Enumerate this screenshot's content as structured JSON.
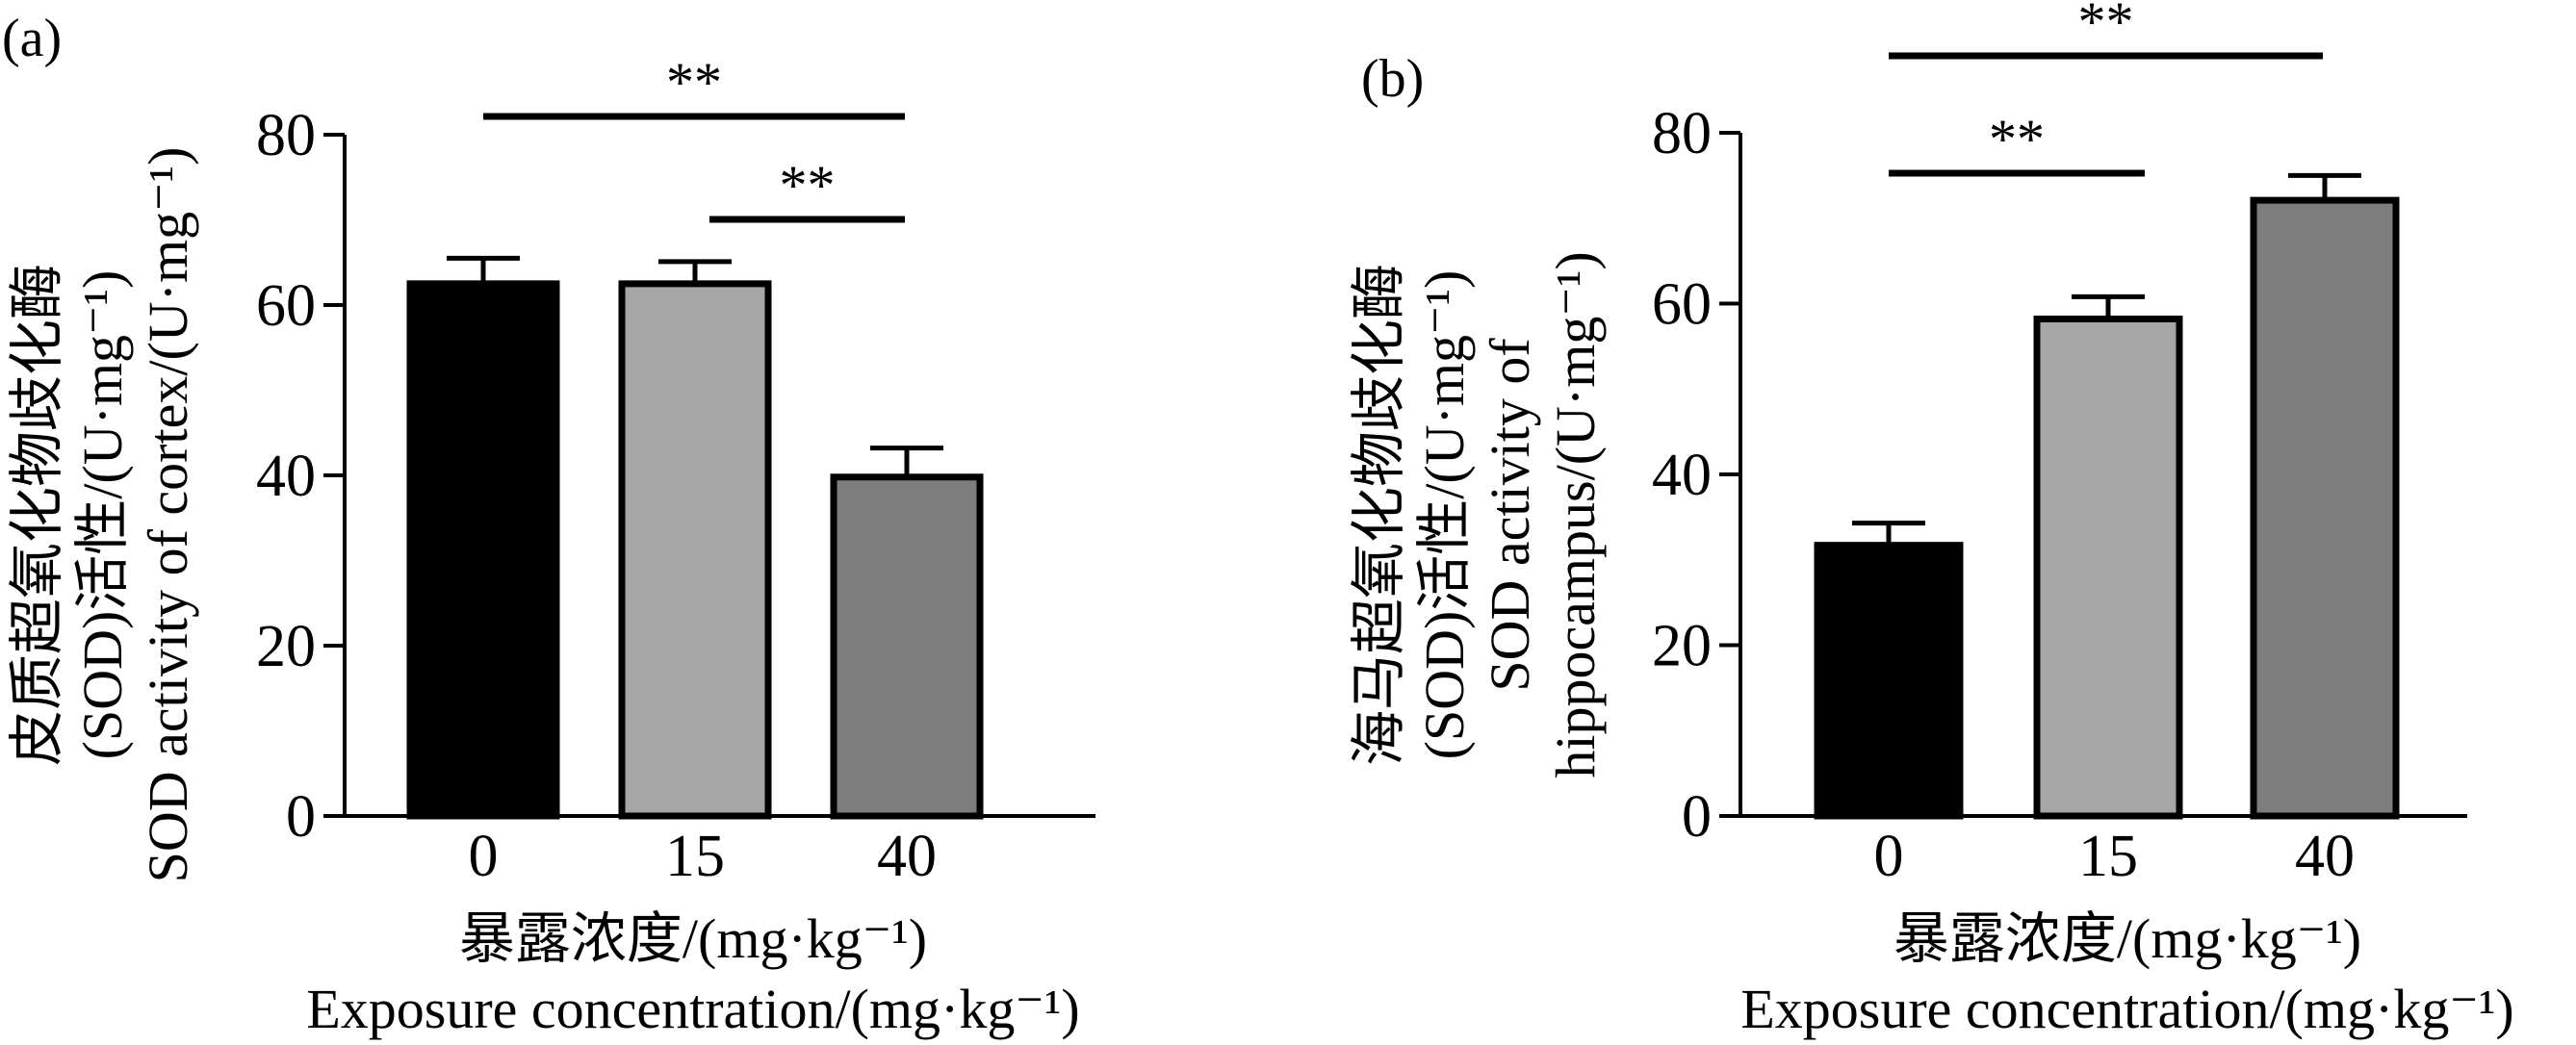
{
  "chart_data": [
    {
      "type": "bar",
      "panel_label": "(a)",
      "categories": [
        "0",
        "15",
        "40"
      ],
      "values": [
        62.5,
        62.5,
        39.8
      ],
      "errors": [
        3.0,
        2.6,
        3.4
      ],
      "bar_colors": [
        "#000000",
        "#a6a6a6",
        "#7d7d7d"
      ],
      "ylim": [
        0,
        80
      ],
      "yticks": [
        "0",
        "20",
        "40",
        "60",
        "80"
      ],
      "xlabel_lines": [
        "暴露浓度/(mg·kg⁻¹)",
        "Exposure concentration/(mg·kg⁻¹)"
      ],
      "ylabel_lines": [
        "皮质超氧化物歧化酶",
        "(SOD)活性/(U·mg⁻¹)",
        "SOD activity of cortex/(U·mg⁻¹)"
      ],
      "significance": [
        {
          "from": 0,
          "to": 2,
          "label": "**"
        },
        {
          "from": 1,
          "to": 2,
          "label": "**"
        }
      ],
      "grid": false,
      "legend": "none"
    },
    {
      "type": "bar",
      "panel_label": "(b)",
      "categories": [
        "0",
        "15",
        "40"
      ],
      "values": [
        31.7,
        58.2,
        72.1
      ],
      "errors": [
        2.6,
        2.6,
        2.9
      ],
      "bar_colors": [
        "#000000",
        "#a6a6a6",
        "#7d7d7d"
      ],
      "ylim": [
        0,
        80
      ],
      "yticks": [
        "0",
        "20",
        "40",
        "60",
        "80"
      ],
      "xlabel_lines": [
        "暴露浓度/(mg·kg⁻¹)",
        "Exposure concentration/(mg·kg⁻¹)"
      ],
      "ylabel_lines": [
        "海马超氧化物歧化酶",
        "(SOD)活性/(U·mg⁻¹)",
        "SOD activity of",
        "hippocampus/(U·mg⁻¹)"
      ],
      "significance": [
        {
          "from": 0,
          "to": 2,
          "label": "**"
        },
        {
          "from": 0,
          "to": 1,
          "label": "**"
        }
      ],
      "grid": false,
      "legend": "none"
    }
  ]
}
